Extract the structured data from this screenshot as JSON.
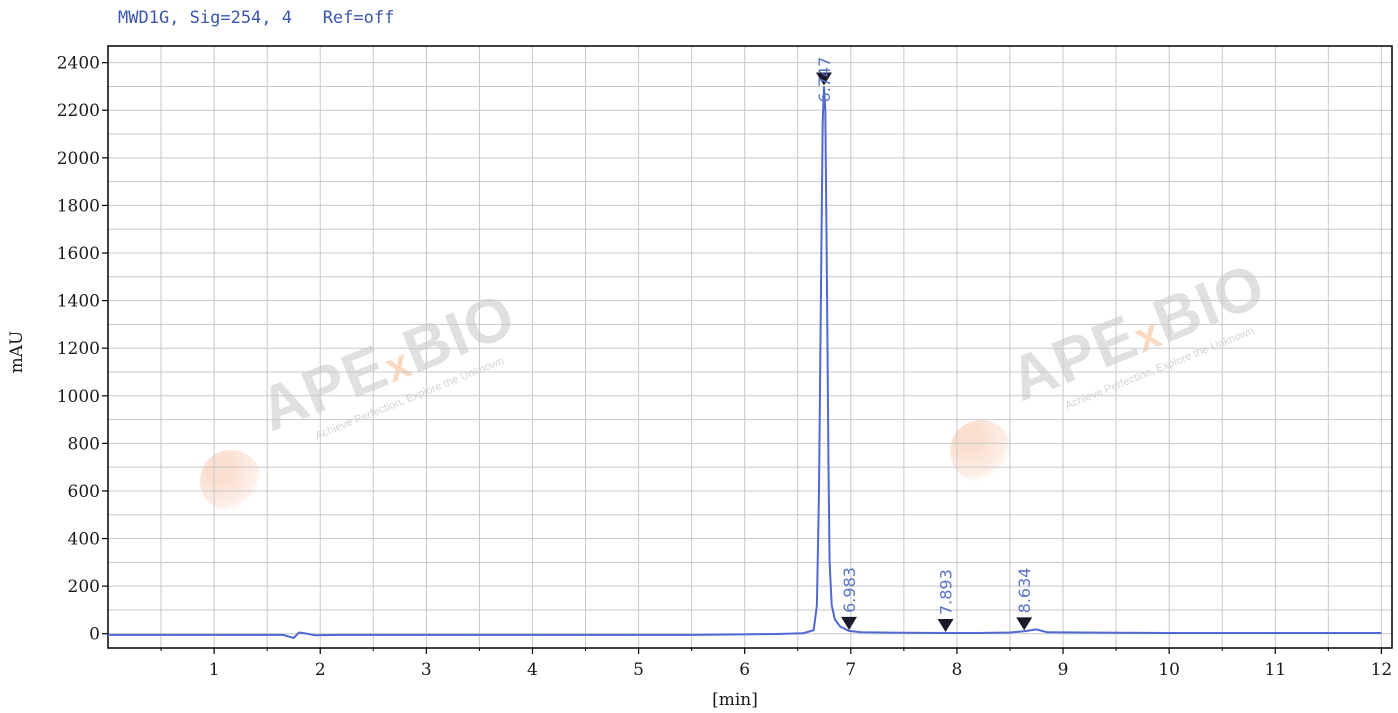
{
  "header": {
    "signal_title": "MWD1G, Sig=254, 4   Ref=off"
  },
  "watermark": {
    "brand": "APE",
    "brand_x": "x",
    "brand_end": "BIO",
    "tagline": "Achieve Perfection, Explore the Unknown"
  },
  "colors": {
    "trace": "#4f6ad0",
    "label": "#5a74c8",
    "grid": "#c8c8c8",
    "axis": "#000000",
    "watermark_accent": "#f0aa78"
  },
  "chart_data": {
    "type": "line",
    "title": "MWD1G, Sig=254, 4   Ref=off",
    "xlabel": "[min]",
    "ylabel": "mAU",
    "xlim": [
      0,
      12.1
    ],
    "ylim": [
      -60,
      2470
    ],
    "x_ticks": [
      1,
      2,
      3,
      4,
      5,
      6,
      7,
      8,
      9,
      10,
      11,
      12
    ],
    "y_ticks": [
      0,
      200,
      400,
      600,
      800,
      1000,
      1200,
      1400,
      1600,
      1800,
      2000,
      2200,
      2400
    ],
    "grid": true,
    "series": [
      {
        "x": [
          0,
          0.5,
          1.0,
          1.5,
          1.65,
          1.75,
          1.8,
          1.85,
          1.95,
          2.2,
          3,
          4,
          5,
          5.5,
          6,
          6.3,
          6.55,
          6.65,
          6.68,
          6.7,
          6.72,
          6.735,
          6.747,
          6.76,
          6.775,
          6.79,
          6.8,
          6.82,
          6.85,
          6.9,
          6.983,
          7.1,
          7.5,
          7.893,
          8.2,
          8.5,
          8.634,
          8.75,
          8.85,
          9.5,
          10,
          11,
          12
        ],
        "y": [
          -5,
          -5,
          -5,
          -5,
          -5,
          -18,
          5,
          2,
          -6,
          -5,
          -5,
          -5,
          -5,
          -5,
          -3,
          -1,
          2,
          15,
          120,
          600,
          1500,
          2150,
          2300,
          2200,
          1500,
          700,
          300,
          120,
          60,
          30,
          12,
          6,
          4,
          3,
          3,
          5,
          10,
          18,
          6,
          4,
          3,
          3,
          3
        ]
      }
    ],
    "peaks": [
      {
        "rt": 6.747,
        "height": 2300,
        "label": "6.747"
      },
      {
        "rt": 6.983,
        "height": 12,
        "label": "6.983"
      },
      {
        "rt": 7.893,
        "height": 3,
        "label": "7.893"
      },
      {
        "rt": 8.634,
        "height": 10,
        "label": "8.634"
      }
    ]
  }
}
